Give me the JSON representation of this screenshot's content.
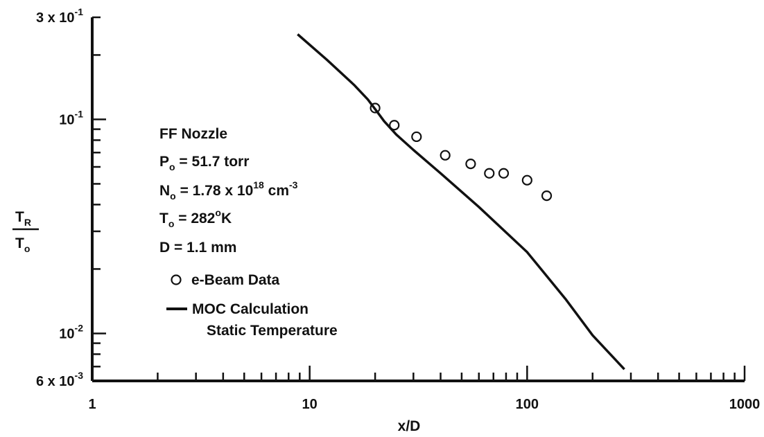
{
  "chart_data": {
    "type": "line",
    "x_scale": "log",
    "y_scale": "log",
    "xlim": [
      1,
      1000
    ],
    "ylim": [
      0.006,
      0.3
    ],
    "xlabel": "x/D",
    "ylabel_numerator": "T",
    "ylabel_numerator_sub": "R",
    "ylabel_denominator": "T",
    "ylabel_denominator_sub": "o",
    "x_ticks": [
      {
        "value": 1,
        "label": "1"
      },
      {
        "value": 10,
        "label": "10"
      },
      {
        "value": 100,
        "label": "100"
      },
      {
        "value": 1000,
        "label": "1000"
      }
    ],
    "y_ticks": [
      {
        "value": 0.3,
        "label": "3 x 10",
        "sup": "-1"
      },
      {
        "value": 0.1,
        "label": "10",
        "sup": "-1"
      },
      {
        "value": 0.01,
        "label": "10",
        "sup": "-2"
      },
      {
        "value": 0.006,
        "label": "6 x 10",
        "sup": "-3"
      }
    ],
    "grid": false,
    "legend_position": "middle-left",
    "header_lines": [
      {
        "text": "FF Nozzle"
      },
      {
        "main": "P",
        "sub": "o",
        "rest": " = 51.7 torr"
      },
      {
        "main": "N",
        "sub": "o",
        "rest": " = 1.78 x 10",
        "sup": "18",
        "rest2": " cm",
        "sup2": "-3"
      },
      {
        "main": "T",
        "sub": "o",
        "rest": " = 282",
        "sup": "o",
        "rest2": "K"
      },
      {
        "text": "D = 1.1 mm"
      }
    ],
    "series": [
      {
        "name": "e-Beam Data",
        "marker": "open-circle",
        "x": [
          20,
          24.5,
          31,
          42,
          55,
          67,
          78,
          100,
          123
        ],
        "y": [
          0.113,
          0.094,
          0.083,
          0.068,
          0.062,
          0.056,
          0.056,
          0.052,
          0.044
        ]
      },
      {
        "name": "MOC Calculation",
        "name_line2": "Static Temperature",
        "marker": "solid-line",
        "x": [
          8.8,
          12,
          16,
          18.5,
          20.5,
          22,
          25,
          30,
          40,
          60,
          100,
          150,
          200,
          280
        ],
        "y": [
          0.25,
          0.19,
          0.145,
          0.124,
          0.108,
          0.098,
          0.085,
          0.072,
          0.056,
          0.039,
          0.024,
          0.0145,
          0.0098,
          0.0068
        ]
      }
    ]
  }
}
